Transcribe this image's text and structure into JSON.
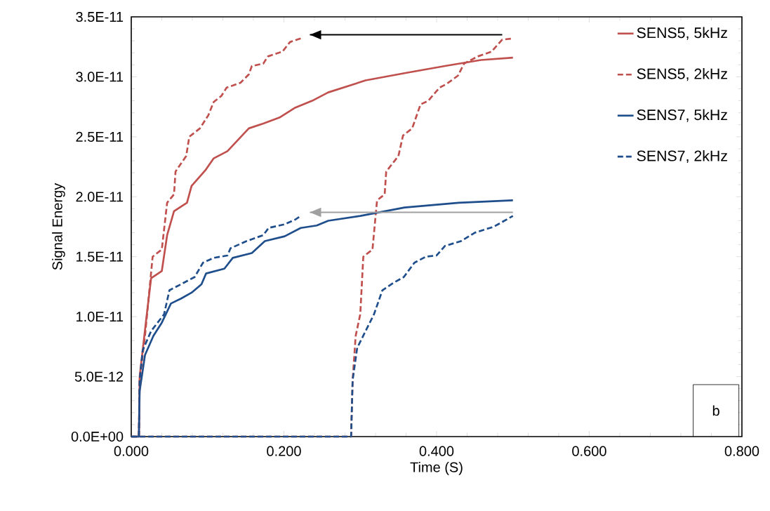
{
  "chart_data": {
    "type": "line",
    "xlabel": "Time (S)",
    "ylabel": "Signal Energy",
    "xlim": [
      0,
      0.8
    ],
    "xticks": [
      {
        "value": 0,
        "label": "0.000"
      },
      {
        "value": 0.2,
        "label": "0.200"
      },
      {
        "value": 0.4,
        "label": "0.400"
      },
      {
        "value": 0.6,
        "label": "0.600"
      },
      {
        "value": 0.8,
        "label": "0.800"
      }
    ],
    "ylim": [
      0,
      3.5e-11
    ],
    "yticks": [
      {
        "value": 0,
        "label": "0.0E+00"
      },
      {
        "value": 5e-12,
        "label": "5.0E-12"
      },
      {
        "value": 1e-11,
        "label": "1.0E-11"
      },
      {
        "value": 1.5e-11,
        "label": "1.5E-11"
      },
      {
        "value": 2e-11,
        "label": "2.0E-11"
      },
      {
        "value": 2.5e-11,
        "label": "2.5E-11"
      },
      {
        "value": 3e-11,
        "label": "3.0E-11"
      },
      {
        "value": 3.5e-11,
        "label": "3.5E-11"
      }
    ],
    "grid": false,
    "legend": "top right",
    "annotations": [
      "b"
    ],
    "series": [
      {
        "name": "SENS5, 5kHz",
        "color": "#c0504d",
        "line_style": "solid",
        "x": [
          0,
          0.01,
          0.011,
          0.02,
          0.026,
          0.04,
          0.047,
          0.056,
          0.073,
          0.079,
          0.097,
          0.108,
          0.126,
          0.154,
          0.173,
          0.194,
          0.214,
          0.237,
          0.258,
          0.307,
          0.358,
          0.411,
          0.458,
          0.5
        ],
        "values": [
          0,
          0,
          5e-12,
          1e-11,
          1.32e-11,
          1.38e-11,
          1.68e-11,
          1.88e-11,
          1.95e-11,
          2.09e-11,
          2.22e-11,
          2.32e-11,
          2.38e-11,
          2.57e-11,
          2.61e-11,
          2.66e-11,
          2.74e-11,
          2.8e-11,
          2.87e-11,
          2.97e-11,
          3.03e-11,
          3.09e-11,
          3.14e-11,
          3.16e-11
        ]
      },
      {
        "name": "SENS5, 2kHz",
        "color": "#c0504d",
        "line_style": "dashed",
        "x": [
          0,
          0.288,
          0.29,
          0.294,
          0.3,
          0.304,
          0.316,
          0.322,
          0.332,
          0.334,
          0.35,
          0.356,
          0.368,
          0.379,
          0.389,
          0.404,
          0.413,
          0.428,
          0.436,
          0.454,
          0.472,
          0.486,
          0.5
        ],
        "values": [
          0,
          0,
          4.7e-12,
          8.4e-12,
          1.02e-11,
          1.5e-11,
          1.56e-11,
          1.97e-11,
          2.02e-11,
          2.21e-11,
          2.34e-11,
          2.51e-11,
          2.57e-11,
          2.77e-11,
          2.8e-11,
          2.91e-11,
          2.94e-11,
          3.01e-11,
          3.11e-11,
          3.17e-11,
          3.21e-11,
          3.31e-11,
          3.32e-11
        ]
      },
      {
        "name": "SENS7, 5kHz",
        "color": "#1f4e8c",
        "line_style": "solid",
        "x": [
          0,
          0.01,
          0.011,
          0.018,
          0.029,
          0.04,
          0.052,
          0.065,
          0.079,
          0.092,
          0.098,
          0.122,
          0.133,
          0.158,
          0.175,
          0.201,
          0.222,
          0.243,
          0.258,
          0.3,
          0.358,
          0.429,
          0.5
        ],
        "values": [
          0,
          0,
          3.8e-12,
          6.8e-12,
          8.4e-12,
          9.5e-12,
          1.11e-11,
          1.15e-11,
          1.2e-11,
          1.27e-11,
          1.36e-11,
          1.4e-11,
          1.49e-11,
          1.53e-11,
          1.63e-11,
          1.67e-11,
          1.74e-11,
          1.76e-11,
          1.8e-11,
          1.84e-11,
          1.91e-11,
          1.95e-11,
          1.97e-11
        ]
      },
      {
        "name": "SENS7, 2kHz",
        "color": "#1f4e8c",
        "line_style": "dashed",
        "x": [
          0,
          0.288,
          0.29,
          0.296,
          0.307,
          0.318,
          0.329,
          0.343,
          0.357,
          0.371,
          0.386,
          0.4,
          0.411,
          0.432,
          0.45,
          0.475,
          0.5
        ],
        "values": [
          0,
          0,
          4.7e-12,
          7.4e-12,
          8.8e-12,
          1.02e-11,
          1.22e-11,
          1.28e-11,
          1.33e-11,
          1.45e-11,
          1.5e-11,
          1.51e-11,
          1.59e-11,
          1.63e-11,
          1.7e-11,
          1.75e-11,
          1.84e-11
        ]
      },
      {
        "color": "#c0504d",
        "line_style": "dashed",
        "x": [
          0.01,
          0.011,
          0.018,
          0.028,
          0.04,
          0.047,
          0.056,
          0.058,
          0.072,
          0.076,
          0.09,
          0.101,
          0.108,
          0.118,
          0.125,
          0.143,
          0.154,
          0.158,
          0.173,
          0.179,
          0.198,
          0.208,
          0.222
        ],
        "values": [
          0,
          4.7e-12,
          8.4e-12,
          1.5e-11,
          1.56e-11,
          1.95e-11,
          2.02e-11,
          2.21e-11,
          2.34e-11,
          2.5e-11,
          2.57e-11,
          2.68e-11,
          2.79e-11,
          2.84e-11,
          2.91e-11,
          2.95e-11,
          3.02e-11,
          3.09e-11,
          3.11e-11,
          3.17e-11,
          3.21e-11,
          3.29e-11,
          3.32e-11
        ]
      },
      {
        "color": "#1f4e8c",
        "line_style": "dashed",
        "x": [
          0.01,
          0.011,
          0.015,
          0.026,
          0.043,
          0.05,
          0.065,
          0.083,
          0.094,
          0.108,
          0.126,
          0.13,
          0.151,
          0.173,
          0.18,
          0.201,
          0.215,
          0.222
        ],
        "values": [
          0,
          4.7e-12,
          7.2e-12,
          8.8e-12,
          1.02e-11,
          1.22e-11,
          1.27e-11,
          1.33e-11,
          1.45e-11,
          1.49e-11,
          1.51e-11,
          1.57e-11,
          1.63e-11,
          1.68e-11,
          1.74e-11,
          1.77e-11,
          1.81e-11,
          1.84e-11
        ]
      },
      {
        "color": "#000000",
        "line_style": "solid",
        "x": [
          0.486,
          0.234
        ],
        "values": [
          3.35e-11,
          3.35e-11
        ]
      },
      {
        "color": "#a0a0a0",
        "line_style": "solid",
        "x": [
          0.5,
          0.234
        ],
        "values": [
          1.87e-11,
          1.87e-11
        ]
      }
    ]
  }
}
